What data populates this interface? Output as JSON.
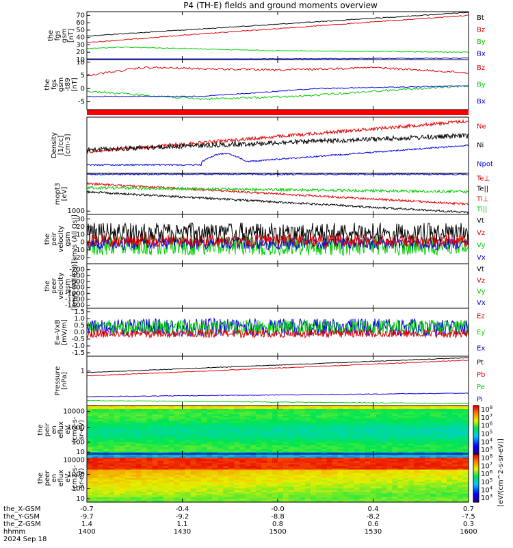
{
  "title": "P4 (TH-E) fields and ground moments overview",
  "colors": {
    "black": "#000000",
    "red": "#e00000",
    "green": "#00cc00",
    "blue": "#0000dd"
  },
  "chart_data": [
    {
      "type": "line",
      "panel": "fgs_gsm",
      "ylabel": "the fgs gsm [nT]",
      "yticks": [
        "70",
        "60",
        "50",
        "40",
        "30",
        "20",
        "10"
      ],
      "series": [
        {
          "name": "Bt",
          "color": "black",
          "points": [
            [
              0,
              42
            ],
            [
              0.25,
              50
            ],
            [
              0.5,
              58
            ],
            [
              0.75,
              66
            ],
            [
              1,
              74
            ]
          ]
        },
        {
          "name": "Bz",
          "color": "red",
          "points": [
            [
              0,
              33
            ],
            [
              0.25,
              43
            ],
            [
              0.5,
              52
            ],
            [
              0.75,
              61
            ],
            [
              1,
              70
            ]
          ]
        },
        {
          "name": "By",
          "color": "green",
          "points": [
            [
              0,
              25
            ],
            [
              0.1,
              27
            ],
            [
              0.5,
              22
            ],
            [
              1,
              20
            ]
          ]
        },
        {
          "name": "Bx",
          "color": "blue",
          "points": [
            [
              0,
              9
            ],
            [
              0.5,
              11
            ],
            [
              1,
              12
            ]
          ]
        }
      ]
    },
    {
      "type": "line",
      "panel": "fgs_gse",
      "ylabel": "the fgs gsm -t89 [nT]",
      "yticks": [
        "10",
        "5",
        "0",
        "-5"
      ],
      "series": [
        {
          "name": "Bz",
          "color": "red",
          "points": [
            [
              0,
              5
            ],
            [
              0.15,
              8
            ],
            [
              0.5,
              7
            ],
            [
              0.75,
              8
            ],
            [
              1,
              6
            ]
          ]
        },
        {
          "name": "By",
          "color": "green",
          "points": [
            [
              0,
              -1
            ],
            [
              0.3,
              -4
            ],
            [
              0.55,
              -3
            ],
            [
              0.75,
              -1
            ],
            [
              1,
              1
            ]
          ]
        },
        {
          "name": "Bx",
          "color": "blue",
          "points": [
            [
              0,
              -3
            ],
            [
              0.3,
              -3
            ],
            [
              0.6,
              0
            ],
            [
              1,
              1
            ]
          ]
        }
      ]
    },
    {
      "type": "line",
      "panel": "density",
      "ylabel": "Density [1/cc] [cm-3]",
      "series": [
        {
          "name": "Ne",
          "color": "red"
        },
        {
          "name": "Ni",
          "color": "black"
        },
        {
          "name": "Npot",
          "color": "blue"
        }
      ]
    },
    {
      "type": "line",
      "panel": "temperature",
      "ylabel": "mopt3 [eV]",
      "yticks": [
        "1000"
      ],
      "series": [
        {
          "name": "Te⊥",
          "color": "red"
        },
        {
          "name": "Te||",
          "color": "black"
        },
        {
          "name": "Ti⊥",
          "color": "red"
        },
        {
          "name": "Ti||",
          "color": "green"
        }
      ]
    },
    {
      "type": "line",
      "panel": "peir_velocity",
      "ylabel": "the peir velocity gsm [km/s (All Qs)]",
      "yticks": [
        "30",
        "20",
        "10",
        "0",
        "-10",
        "-20"
      ],
      "series": [
        {
          "name": "Vt",
          "color": "black"
        },
        {
          "name": "Vz",
          "color": "red"
        },
        {
          "name": "Vy",
          "color": "green"
        },
        {
          "name": "Vx",
          "color": "blue"
        }
      ]
    },
    {
      "type": "line",
      "panel": "peer_velocity",
      "ylabel": "the peer velocity gsm [km/s (All Qs)]",
      "yticks": [
        "-200",
        "-400",
        "-600",
        "-800",
        "-1000",
        "-1200",
        "-1400"
      ],
      "series": [
        {
          "name": "Vt",
          "color": "black"
        },
        {
          "name": "Vz",
          "color": "red"
        },
        {
          "name": "Vy",
          "color": "green"
        },
        {
          "name": "Vx",
          "color": "blue"
        }
      ]
    },
    {
      "type": "line",
      "panel": "efield",
      "ylabel": "E=-VxB [mV/m]",
      "yticks": [
        "1.5",
        "1.0",
        "0.5",
        "0.0",
        "-0.5",
        "-1.0",
        "-1.5"
      ],
      "series": [
        {
          "name": "Ez",
          "color": "red"
        },
        {
          "name": "Ey",
          "color": "green"
        },
        {
          "name": "Ex",
          "color": "blue"
        }
      ]
    },
    {
      "type": "line",
      "panel": "pressure",
      "ylabel": "Pressure [nPa]",
      "yticks": [
        "1"
      ],
      "series": [
        {
          "name": "Pt",
          "color": "black"
        },
        {
          "name": "Pb",
          "color": "red"
        },
        {
          "name": "Pe",
          "color": "green"
        },
        {
          "name": "Pi",
          "color": "blue"
        }
      ]
    },
    {
      "type": "heatmap",
      "panel": "peir_spec",
      "ylabel": "the peir en eflux eV (cm^2-s-sr-eV)",
      "yticks": [
        "10000",
        "1000",
        "100",
        "10"
      ]
    },
    {
      "type": "heatmap",
      "panel": "peer_spec",
      "ylabel": "the peer en eflux eV (cm^2-s-sr-eV)",
      "yticks": [
        "10000",
        "1000",
        "100",
        "10"
      ]
    }
  ],
  "colorbar": {
    "label": "[eV/(cm^2-s-sr-eV)]",
    "ticks": [
      "10^8",
      "10^7",
      "10^6",
      "10^5",
      "10^4",
      "10^3"
    ]
  },
  "xaxis": {
    "rows": [
      {
        "label": "the_X-GSM",
        "values": [
          "-0.7",
          "-0.4",
          "-0.0",
          "0.4",
          "0.7"
        ]
      },
      {
        "label": "the_Y-GSM",
        "values": [
          "-9.7",
          "-9.2",
          "-8.8",
          "-8.2",
          "-7.5"
        ]
      },
      {
        "label": "the_Z-GSM",
        "values": [
          "1.4",
          "1.1",
          "0.8",
          "0.6",
          "0.3"
        ]
      },
      {
        "label": "hhmm",
        "values": [
          "1400",
          "1430",
          "1500",
          "1530",
          "1600"
        ]
      }
    ],
    "date": "2024 Sep 18"
  }
}
